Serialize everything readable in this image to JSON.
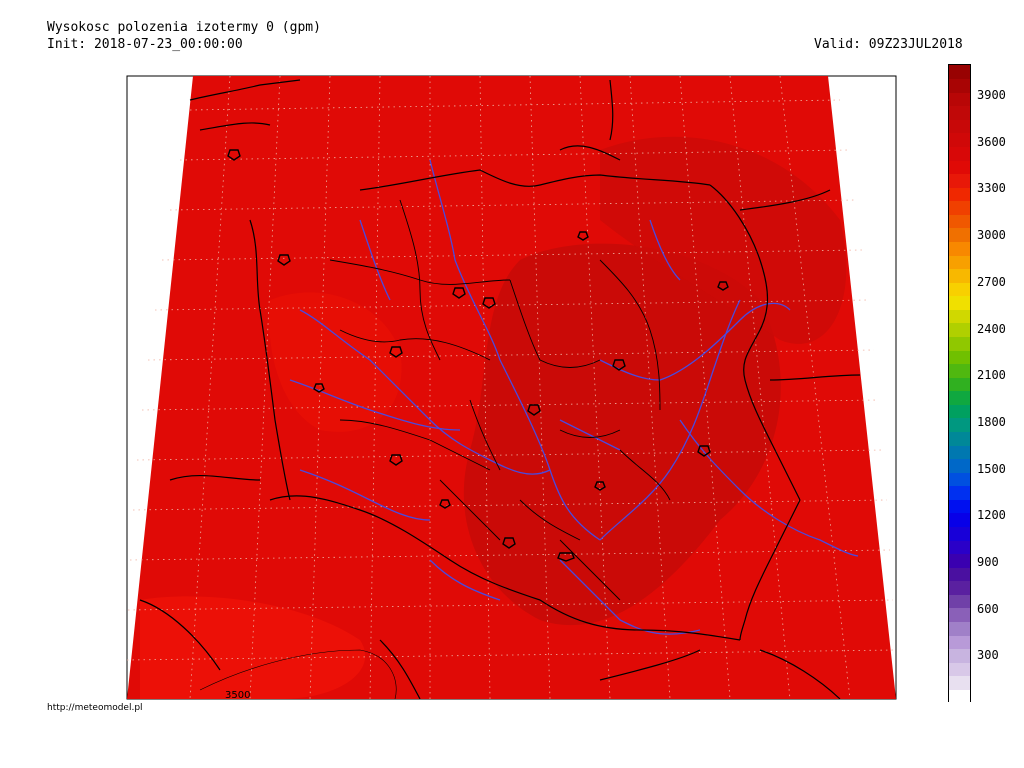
{
  "header": {
    "title": "Wysokosc polozenia izotermy 0 (gpm)",
    "init": "Init: 2018-07-23_00:00:00",
    "valid": "Valid: 09Z23JUL2018"
  },
  "footer": {
    "source": "http://meteomodel.pl"
  },
  "map": {
    "contour_label": "3500",
    "field_color": "#e00a06",
    "dark_field_color": "#c80a08",
    "border_color": "#000000",
    "river_color": "#4a4adf",
    "grid_color": "#e8b0a8"
  },
  "colorbar": {
    "tick_labels": [
      "3900",
      "3600",
      "3300",
      "3000",
      "2700",
      "2400",
      "2100",
      "1800",
      "1500",
      "1200",
      "900",
      "600",
      "300"
    ],
    "tick_values": [
      3900,
      3600,
      3300,
      3000,
      2700,
      2400,
      2100,
      1800,
      1500,
      1200,
      900,
      600,
      300
    ],
    "range": [
      0,
      4100
    ],
    "colors": [
      "#ffffff",
      "#e8e0f0",
      "#d8c8e8",
      "#c8b4e0",
      "#b89ad8",
      "#a080c8",
      "#8a60b8",
      "#7040a8",
      "#5a20a0",
      "#4a10a0",
      "#3a00b0",
      "#2a00c8",
      "#1800d8",
      "#0800e8",
      "#0010f0",
      "#0030f0",
      "#0050e0",
      "#0068c8",
      "#0078b0",
      "#008898",
      "#009880",
      "#00a060",
      "#10a840",
      "#30b020",
      "#50b810",
      "#70c000",
      "#90c800",
      "#b0d000",
      "#d0d800",
      "#f0e000",
      "#f8d000",
      "#f8b800",
      "#f8a000",
      "#f88800",
      "#f07000",
      "#f05800",
      "#f04000",
      "#f02800",
      "#e81808",
      "#e00a06",
      "#d80808",
      "#d00808",
      "#c80808",
      "#c00808",
      "#b80606",
      "#a80404",
      "#980202"
    ]
  }
}
